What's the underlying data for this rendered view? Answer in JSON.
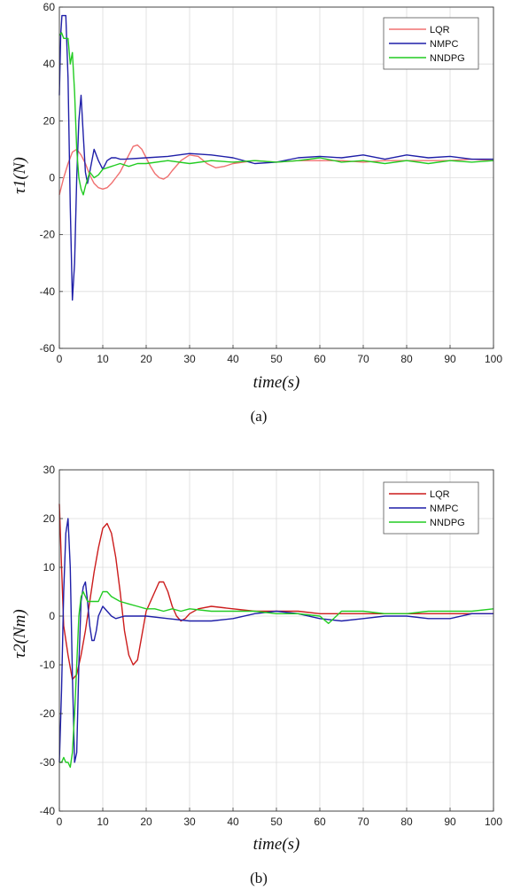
{
  "chart_data": [
    {
      "type": "line",
      "panel": "a",
      "caption": "(a)",
      "xlabel": "time(s)",
      "ylabel": "τ1(N)",
      "xlim": [
        0,
        100
      ],
      "ylim": [
        -60,
        60
      ],
      "xticks": [
        0,
        10,
        20,
        30,
        40,
        50,
        60,
        70,
        80,
        90,
        100
      ],
      "yticks": [
        -60,
        -40,
        -20,
        0,
        20,
        40,
        60
      ],
      "grid": true,
      "legend_position": "top-right",
      "series": [
        {
          "name": "LQR",
          "color": "#f07070",
          "x": [
            0,
            1,
            2,
            3,
            4,
            5,
            6,
            7,
            8,
            9,
            10,
            11,
            12,
            13,
            14,
            15,
            16,
            17,
            18,
            19,
            20,
            21,
            22,
            23,
            24,
            25,
            26,
            28,
            30,
            32,
            34,
            36,
            38,
            40,
            45,
            50,
            55,
            60,
            65,
            70,
            75,
            80,
            85,
            90,
            95,
            100
          ],
          "y": [
            -6,
            0,
            5,
            9,
            10,
            8,
            5,
            1,
            -2,
            -3.5,
            -4,
            -3.5,
            -2,
            0,
            2,
            5,
            8,
            11,
            11.5,
            10,
            7,
            4,
            1.5,
            0,
            -0.5,
            0.5,
            2.5,
            6,
            8,
            7.5,
            5,
            3.5,
            4,
            5,
            6,
            5.5,
            6,
            6,
            6,
            5.5,
            6,
            6,
            6,
            6,
            6.5,
            6
          ]
        },
        {
          "name": "NMPC",
          "color": "#1f1fa8",
          "x": [
            0,
            0.3,
            0.6,
            1,
            1.5,
            2,
            2.5,
            3,
            3.5,
            4,
            4.5,
            5,
            5.5,
            6,
            6.5,
            7,
            8,
            9,
            10,
            11,
            12,
            13,
            14,
            15,
            20,
            25,
            30,
            35,
            40,
            45,
            50,
            55,
            60,
            65,
            70,
            75,
            80,
            85,
            90,
            95,
            100
          ],
          "y": [
            29,
            50,
            57,
            57,
            57,
            35,
            -10,
            -43,
            -30,
            0,
            20,
            29,
            15,
            2,
            -2,
            2,
            10,
            6,
            3,
            6,
            7,
            7,
            6.5,
            6.5,
            7,
            7.5,
            8.5,
            8,
            7,
            5,
            5.5,
            7,
            7.5,
            7,
            8,
            6.5,
            8,
            7,
            7.5,
            6.5,
            6.5
          ]
        },
        {
          "name": "NNDPG",
          "color": "#22cc22",
          "x": [
            0,
            0.5,
            1,
            2,
            2.5,
            3,
            3.5,
            4,
            4.5,
            5,
            5.5,
            6,
            7,
            8,
            9,
            10,
            12,
            14,
            16,
            18,
            20,
            25,
            30,
            35,
            40,
            45,
            50,
            55,
            60,
            65,
            70,
            75,
            80,
            85,
            90,
            95,
            100
          ],
          "y": [
            50,
            51,
            49,
            49,
            40,
            44,
            30,
            10,
            0,
            -4,
            -6,
            -3,
            2,
            0,
            1,
            3,
            4,
            5,
            4,
            5,
            5,
            6,
            5,
            6,
            5.5,
            6,
            5.5,
            6,
            7,
            5.5,
            6,
            5,
            6,
            5,
            6,
            5.5,
            6
          ]
        }
      ]
    },
    {
      "type": "line",
      "panel": "b",
      "caption": "(b)",
      "xlabel": "time(s)",
      "ylabel": "τ2(Nm)",
      "xlim": [
        0,
        100
      ],
      "ylim": [
        -40,
        30
      ],
      "xticks": [
        0,
        10,
        20,
        30,
        40,
        50,
        60,
        70,
        80,
        90,
        100
      ],
      "yticks": [
        -40,
        -30,
        -20,
        -10,
        0,
        10,
        20,
        30
      ],
      "grid": true,
      "legend_position": "top-right",
      "series": [
        {
          "name": "LQR",
          "color": "#cc1c1c",
          "x": [
            0,
            0.5,
            1,
            2,
            3,
            4,
            5,
            6,
            7,
            8,
            9,
            10,
            11,
            12,
            13,
            14,
            15,
            16,
            17,
            18,
            19,
            20,
            21,
            22,
            23,
            24,
            25,
            26,
            27,
            28,
            29,
            30,
            32,
            35,
            40,
            45,
            50,
            55,
            60,
            65,
            70,
            75,
            80,
            85,
            90,
            95,
            100
          ],
          "y": [
            23,
            10,
            -2,
            -8,
            -13,
            -12,
            -8,
            -3,
            3,
            9,
            14,
            18,
            19,
            17,
            12,
            5,
            -3,
            -8,
            -10,
            -9,
            -4,
            1,
            3,
            5,
            7,
            7,
            5,
            2,
            0,
            -1,
            -0.5,
            0.5,
            1.5,
            2,
            1.5,
            1,
            1,
            1,
            0.5,
            0.5,
            0.5,
            0.5,
            0.5,
            0.5,
            0.5,
            0.5,
            0.5
          ]
        },
        {
          "name": "NMPC",
          "color": "#1f1fa8",
          "x": [
            0,
            0.5,
            1,
            1.5,
            2,
            2.5,
            3,
            3.5,
            4,
            4.5,
            5,
            5.5,
            6,
            6.5,
            7,
            7.5,
            8,
            8.5,
            9,
            10,
            11,
            12,
            13,
            15,
            20,
            25,
            30,
            35,
            40,
            45,
            50,
            55,
            60,
            65,
            70,
            75,
            80,
            85,
            90,
            95,
            100
          ],
          "y": [
            -30,
            -15,
            5,
            17,
            20,
            10,
            -12,
            -30,
            -28,
            -10,
            3,
            6,
            7,
            3,
            -2,
            -5,
            -5,
            -3,
            0,
            2,
            1,
            0,
            -0.5,
            0,
            0,
            -0.5,
            -1,
            -1,
            -0.5,
            0.5,
            1,
            0.5,
            -0.5,
            -1,
            -0.5,
            0,
            0,
            -0.5,
            -0.5,
            0.5,
            0.5
          ]
        },
        {
          "name": "NNDPG",
          "color": "#22cc22",
          "x": [
            0,
            0.5,
            1,
            1.5,
            2,
            2.5,
            3,
            3.5,
            4,
            4.5,
            5,
            5.5,
            6,
            6.5,
            7,
            8,
            9,
            10,
            11,
            12,
            14,
            16,
            18,
            20,
            22,
            24,
            26,
            28,
            30,
            35,
            40,
            45,
            50,
            55,
            60,
            62,
            65,
            70,
            75,
            80,
            85,
            90,
            95,
            100
          ],
          "y": [
            -30,
            -30,
            -29,
            -30,
            -30,
            -31,
            -28,
            -20,
            -10,
            0,
            4,
            5,
            4,
            3,
            3,
            3,
            3,
            5,
            5,
            4,
            3,
            2.5,
            2,
            1.5,
            1.5,
            1,
            1.5,
            1,
            1.5,
            1,
            1,
            1,
            0.5,
            0.5,
            0,
            -1.5,
            1,
            1,
            0.5,
            0.5,
            1,
            1,
            1,
            1.5
          ]
        }
      ]
    }
  ]
}
